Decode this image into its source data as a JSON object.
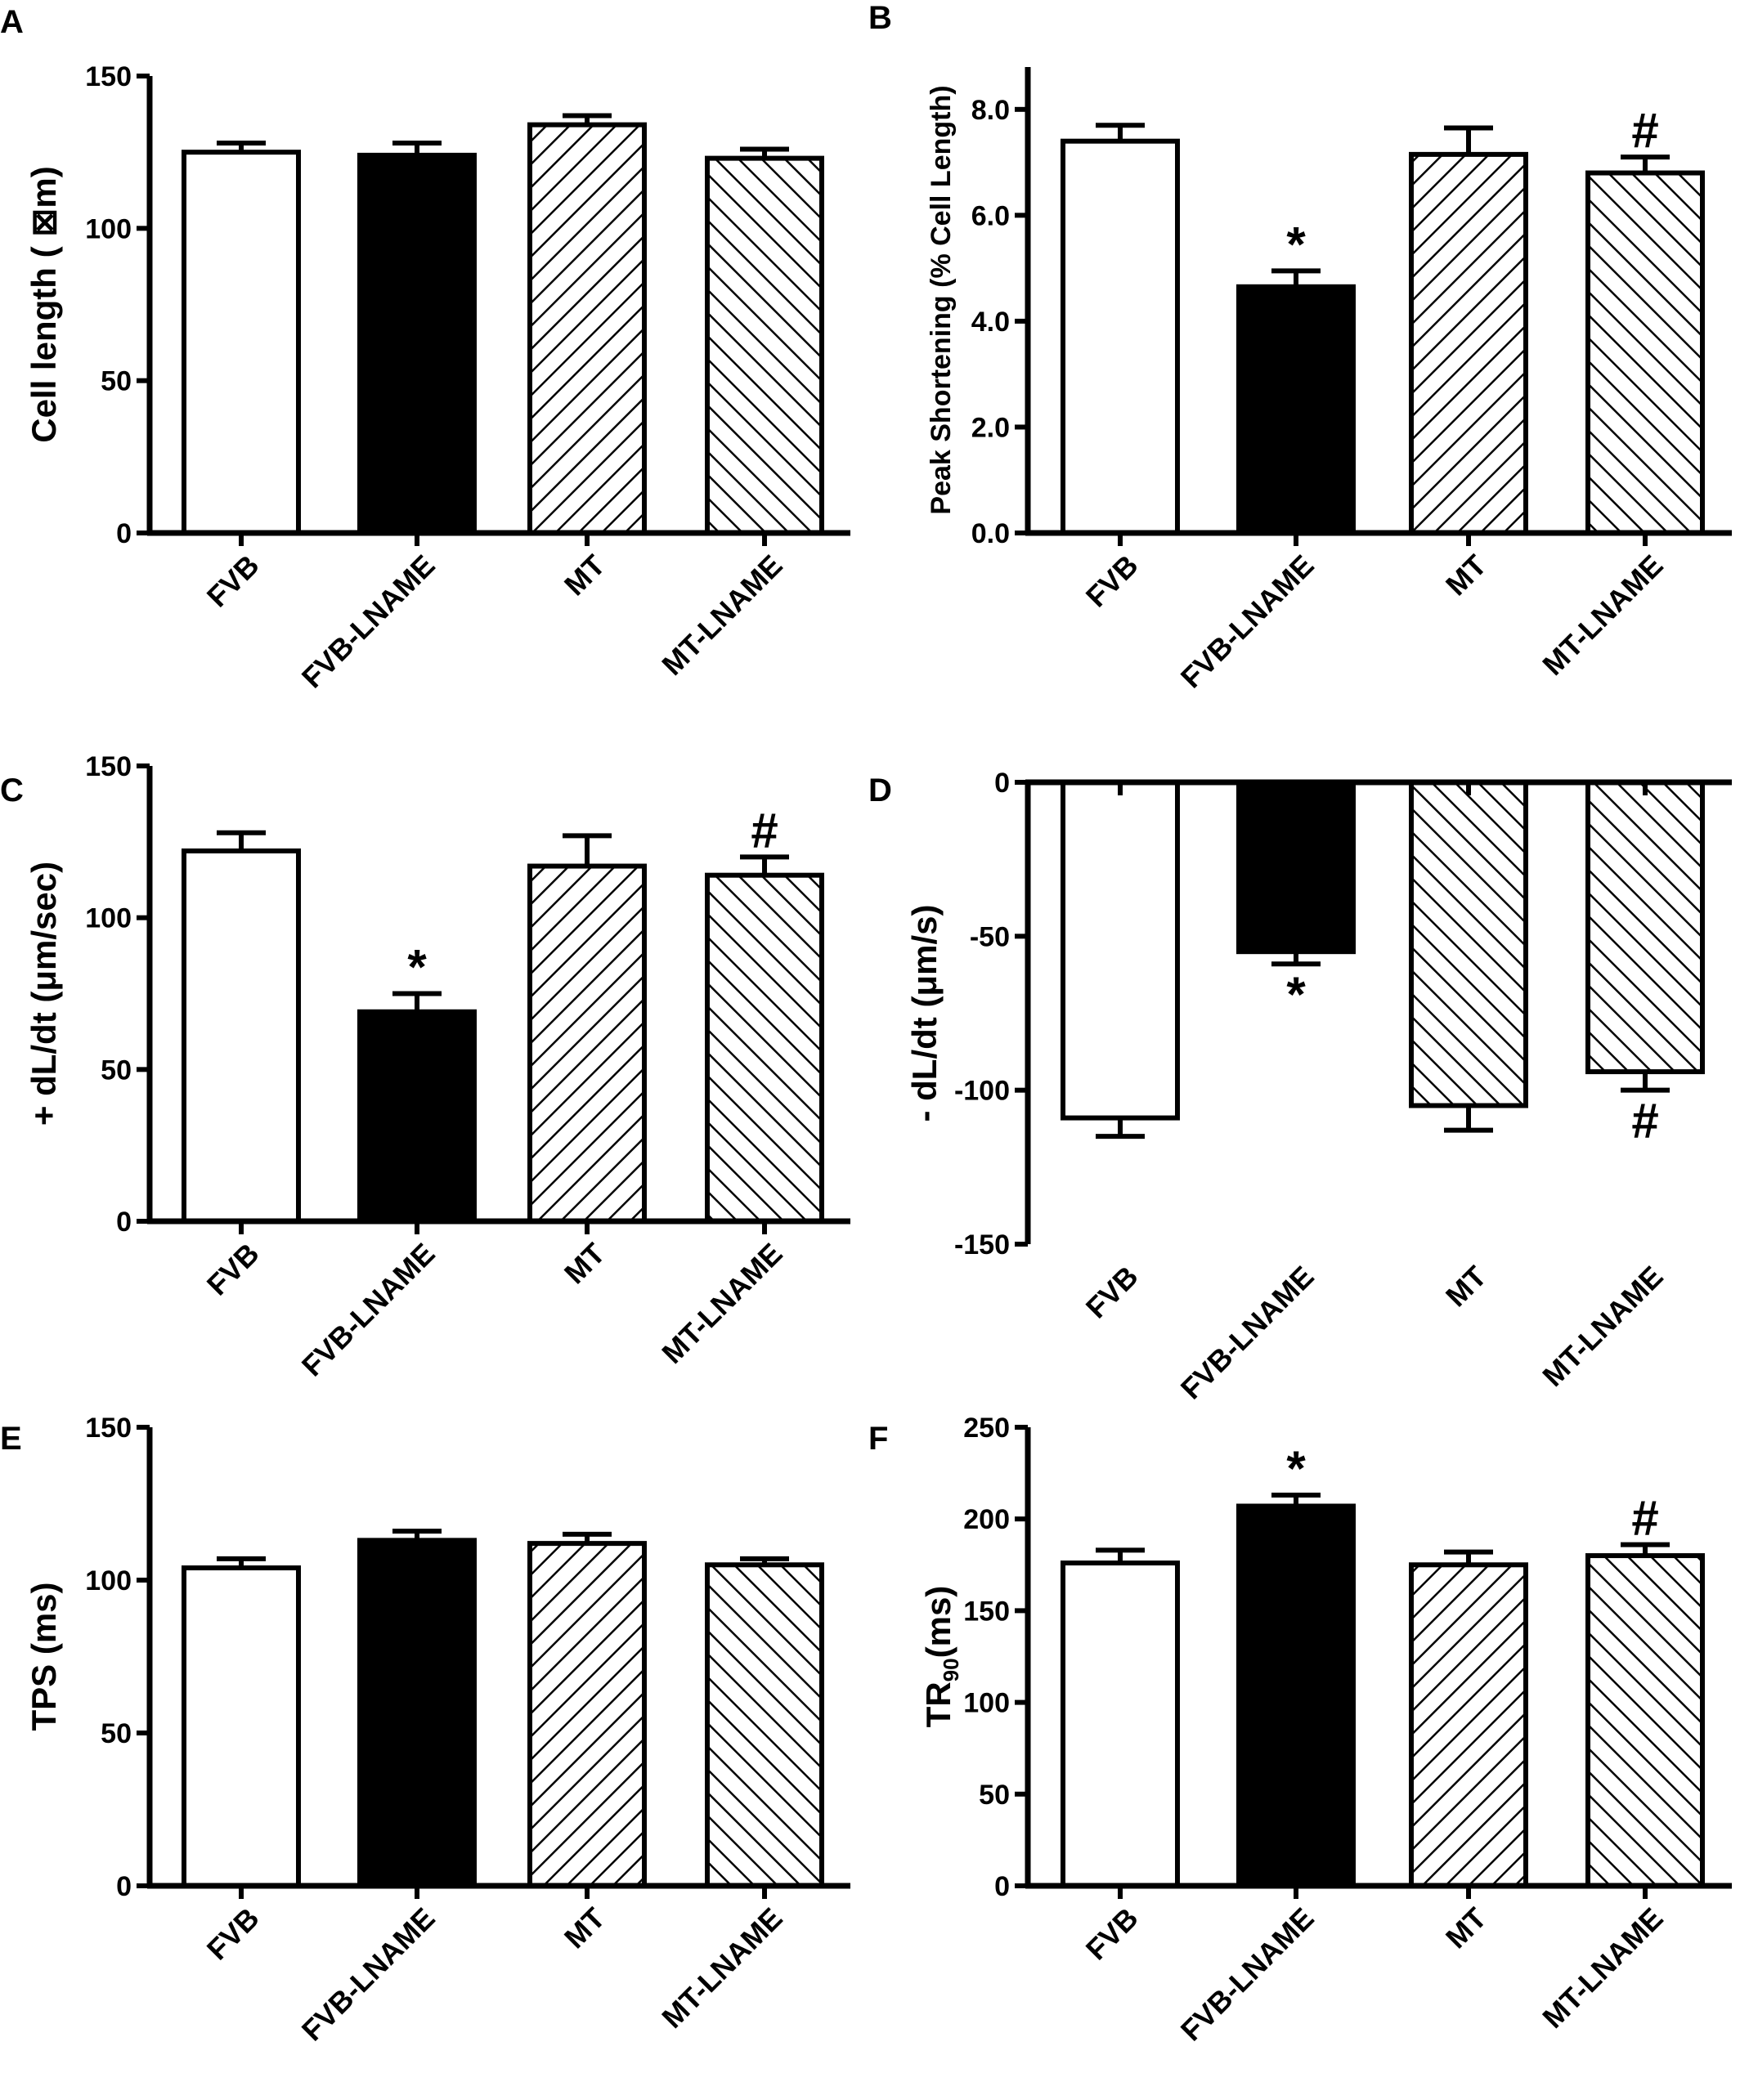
{
  "colors": {
    "ink": "#000000",
    "paper": "#ffffff"
  },
  "chart_data": [
    {
      "panel": "A",
      "type": "bar",
      "ylabel": "Cell length ( ⊠m)",
      "categories": [
        "FVB",
        "FVB-LNAME",
        "MT",
        "MT-LNAME"
      ],
      "values": [
        125,
        124,
        134,
        123
      ],
      "errors": [
        3,
        4,
        3,
        3
      ],
      "ylim": [
        0,
        150
      ],
      "ticks": [
        0,
        50,
        100,
        150
      ],
      "tick_labels": [
        "0",
        "50",
        "100",
        "150"
      ],
      "fills": [
        "white",
        "black",
        "hatch-up",
        "hatch-down"
      ],
      "marks": [
        "",
        "",
        "",
        ""
      ]
    },
    {
      "panel": "B",
      "type": "bar",
      "ylabel": "Peak Shortening (% Cell Length)",
      "categories": [
        "FVB",
        "FVB-LNAME",
        "MT",
        "MT-LNAME"
      ],
      "values": [
        7.4,
        4.65,
        7.15,
        6.8
      ],
      "errors": [
        0.3,
        0.3,
        0.5,
        0.3
      ],
      "ylim": [
        0,
        8.8
      ],
      "ticks": [
        0,
        2,
        4,
        6,
        8
      ],
      "tick_labels": [
        "0.0",
        "2.0",
        "4.0",
        "6.0",
        "8.0"
      ],
      "fills": [
        "white",
        "black",
        "hatch-up",
        "hatch-down"
      ],
      "marks": [
        "",
        "*",
        "",
        "#"
      ]
    },
    {
      "panel": "C",
      "type": "bar",
      "ylabel": "+ dL/dt (μm/sec)",
      "categories": [
        "FVB",
        "FVB-LNAME",
        "MT",
        "MT-LNAME"
      ],
      "values": [
        122,
        69,
        117,
        114
      ],
      "errors": [
        6,
        6,
        10,
        6
      ],
      "ylim": [
        0,
        150
      ],
      "ticks": [
        0,
        50,
        100,
        150
      ],
      "tick_labels": [
        "0",
        "50",
        "100",
        "150"
      ],
      "fills": [
        "white",
        "black",
        "hatch-up",
        "hatch-down"
      ],
      "marks": [
        "",
        "*",
        "",
        "#"
      ]
    },
    {
      "panel": "D",
      "type": "bar",
      "ylabel": "- dL/dt (μm/s)",
      "categories": [
        "FVB",
        "FVB-LNAME",
        "MT",
        "MT-LNAME"
      ],
      "values": [
        -109,
        -55,
        -105,
        -94
      ],
      "errors": [
        6,
        4,
        8,
        6
      ],
      "ylim": [
        -150,
        0
      ],
      "ticks": [
        -150,
        -100,
        -50,
        0
      ],
      "tick_labels": [
        "-150",
        "-100",
        "-50",
        "0"
      ],
      "fills": [
        "white",
        "black",
        "hatch-down",
        "hatch-down"
      ],
      "marks": [
        "",
        "*",
        "",
        "#"
      ]
    },
    {
      "panel": "E",
      "type": "bar",
      "ylabel": "TPS (ms)",
      "categories": [
        "FVB",
        "FVB-LNAME",
        "MT",
        "MT-LNAME"
      ],
      "values": [
        104,
        113,
        112,
        105
      ],
      "errors": [
        3,
        3,
        3,
        2
      ],
      "ylim": [
        0,
        150
      ],
      "ticks": [
        0,
        50,
        100,
        150
      ],
      "tick_labels": [
        "0",
        "50",
        "100",
        "150"
      ],
      "fills": [
        "white",
        "black",
        "hatch-up",
        "hatch-down"
      ],
      "marks": [
        "",
        "",
        "",
        ""
      ]
    },
    {
      "panel": "F",
      "type": "bar",
      "ylabel": "TR",
      "ylabel_sub": "90",
      "ylabel_suffix": "(ms)",
      "categories": [
        "FVB",
        "FVB-LNAME",
        "MT",
        "MT-LNAME"
      ],
      "values": [
        176,
        207,
        175,
        180
      ],
      "errors": [
        7,
        6,
        7,
        6
      ],
      "ylim": [
        0,
        250
      ],
      "ticks": [
        0,
        50,
        100,
        150,
        200,
        250
      ],
      "tick_labels": [
        "0",
        "50",
        "100",
        "150",
        "200",
        "250"
      ],
      "fills": [
        "white",
        "black",
        "hatch-up",
        "hatch-down"
      ],
      "marks": [
        "",
        "*",
        "",
        "#"
      ]
    }
  ]
}
